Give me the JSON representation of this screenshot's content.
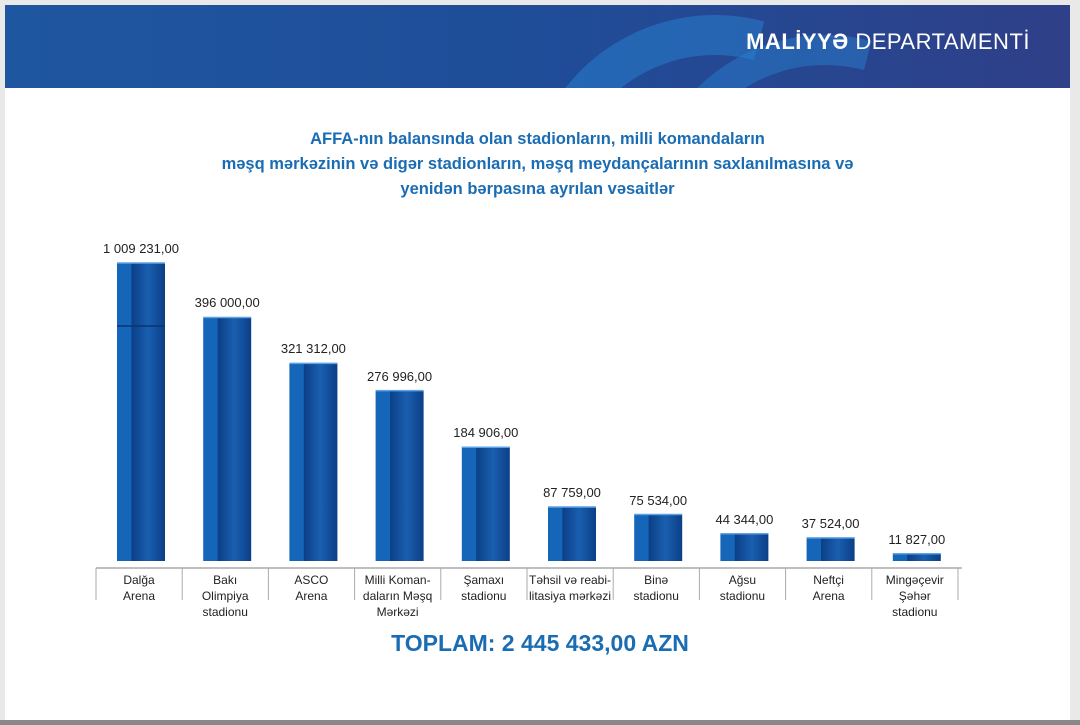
{
  "header": {
    "brand_bold": "MALİYYƏ",
    "brand_rest": " DEPARTAMENTİ"
  },
  "colors": {
    "bar_front": "#1565b8",
    "bar_side": "#0b3f86",
    "title": "#1a6cb3",
    "header": "#1f4d98"
  },
  "chart_data": {
    "type": "bar",
    "title": "AFFA-nın balansında olan stadionların, milli komandaların məşq mərkəzinin və digər stadionların, məşq meydançalarının saxlanılmasına və yenidən bərpasına ayrılan vəsaitlər",
    "title_lines": [
      "AFFA-nın balansında olan stadionların, milli komandaların",
      "məşq mərkəzinin və digər stadionların, məşq meydançalarının saxlanılmasına və",
      "yenidən bərpasına ayrılan vəsaitlər"
    ],
    "categories": [
      [
        "Dalğa",
        "Arena"
      ],
      [
        "Bakı",
        "Olimpiya",
        "stadionu"
      ],
      [
        "ASCO",
        "Arena"
      ],
      [
        "Milli Koman-",
        "daların Məşq",
        "Mərkəzi"
      ],
      [
        "Şamaxı",
        "stadionu"
      ],
      [
        "Təhsil və reabi-",
        "litasiya mərkəzi"
      ],
      [
        "Binə",
        "stadionu"
      ],
      [
        "Ağsu",
        "stadionu"
      ],
      [
        "Neftçi",
        "Arena"
      ],
      [
        "Mingəçevir",
        "Şəhər",
        "stadionu"
      ]
    ],
    "values": [
      1009231,
      396000,
      321312,
      276996,
      184906,
      87759,
      75534,
      44344,
      37524,
      11827
    ],
    "value_labels": [
      "1 009 231,00",
      "396 000,00",
      "321 312,00",
      "276 996,00",
      "184 906,00",
      "87 759,00",
      "75 534,00",
      "44 344,00",
      "37 524,00",
      "11 827,00"
    ],
    "axis_break": true,
    "xlabel": "",
    "ylabel": "",
    "grid": false
  },
  "total": "TOPLAM: 2 445 433,00 AZN"
}
